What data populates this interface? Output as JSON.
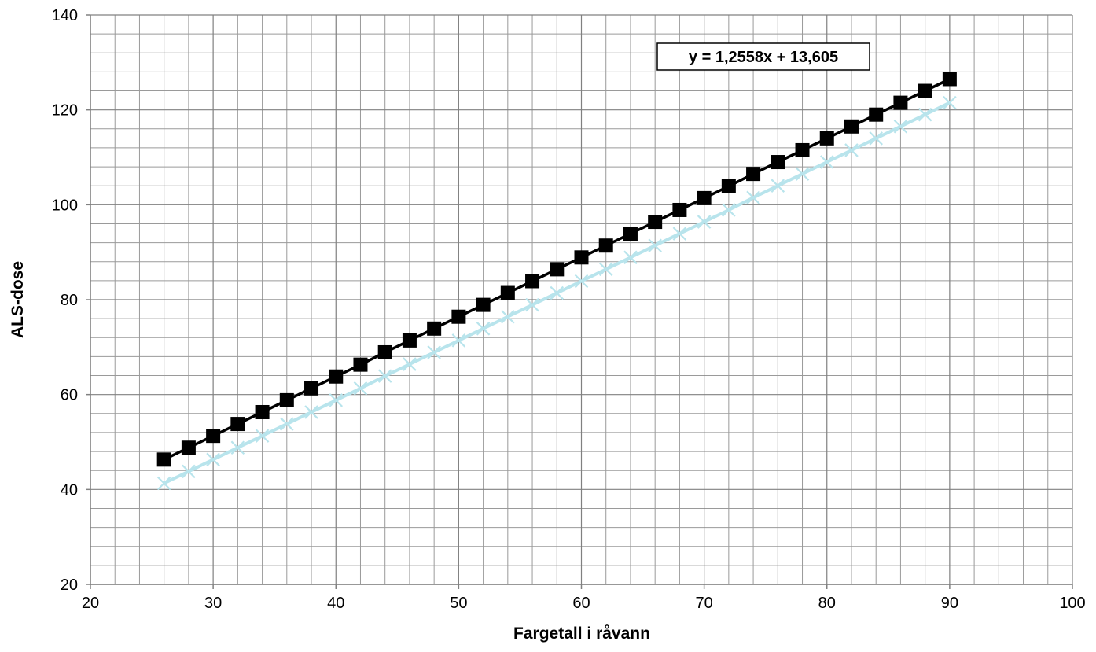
{
  "chart_data": {
    "type": "line",
    "title": "",
    "xlabel": "Fargetall i råvann",
    "ylabel": "ALS-dose",
    "xlim": [
      20,
      100
    ],
    "ylim": [
      20,
      140
    ],
    "x_ticks": [
      20,
      30,
      40,
      50,
      60,
      70,
      80,
      90,
      100
    ],
    "y_ticks": [
      20,
      40,
      60,
      80,
      100,
      120,
      140
    ],
    "grid": true,
    "legend": "none",
    "x": [
      26,
      28,
      30,
      32,
      34,
      36,
      38,
      40,
      42,
      44,
      46,
      48,
      50,
      52,
      54,
      56,
      58,
      60,
      62,
      64,
      66,
      68,
      70,
      72,
      74,
      76,
      78,
      80,
      82,
      84,
      86,
      88,
      90
    ],
    "series": [
      {
        "marker": "square",
        "color": "#000000",
        "values": [
          46.3,
          48.8,
          51.3,
          53.8,
          56.3,
          58.8,
          61.3,
          63.8,
          66.3,
          68.9,
          71.4,
          73.9,
          76.4,
          78.9,
          81.4,
          83.9,
          86.4,
          88.9,
          91.4,
          93.9,
          96.4,
          98.9,
          101.4,
          103.9,
          106.5,
          109.0,
          111.5,
          114.0,
          116.5,
          119.0,
          121.5,
          124.0,
          126.5
        ]
      },
      {
        "marker": "x",
        "color": "#b8e4ec",
        "values": [
          41.3,
          43.8,
          46.3,
          48.8,
          51.3,
          53.8,
          56.3,
          58.8,
          61.3,
          63.9,
          66.4,
          68.9,
          71.4,
          73.9,
          76.4,
          78.9,
          81.4,
          83.9,
          86.4,
          88.9,
          91.4,
          93.9,
          96.4,
          98.9,
          101.5,
          104.0,
          106.5,
          109.0,
          111.5,
          114.0,
          116.5,
          119.0,
          121.5
        ]
      }
    ],
    "annotations": [
      {
        "text": "y = 1,2558x + 13,605",
        "position": "top-right"
      }
    ]
  }
}
